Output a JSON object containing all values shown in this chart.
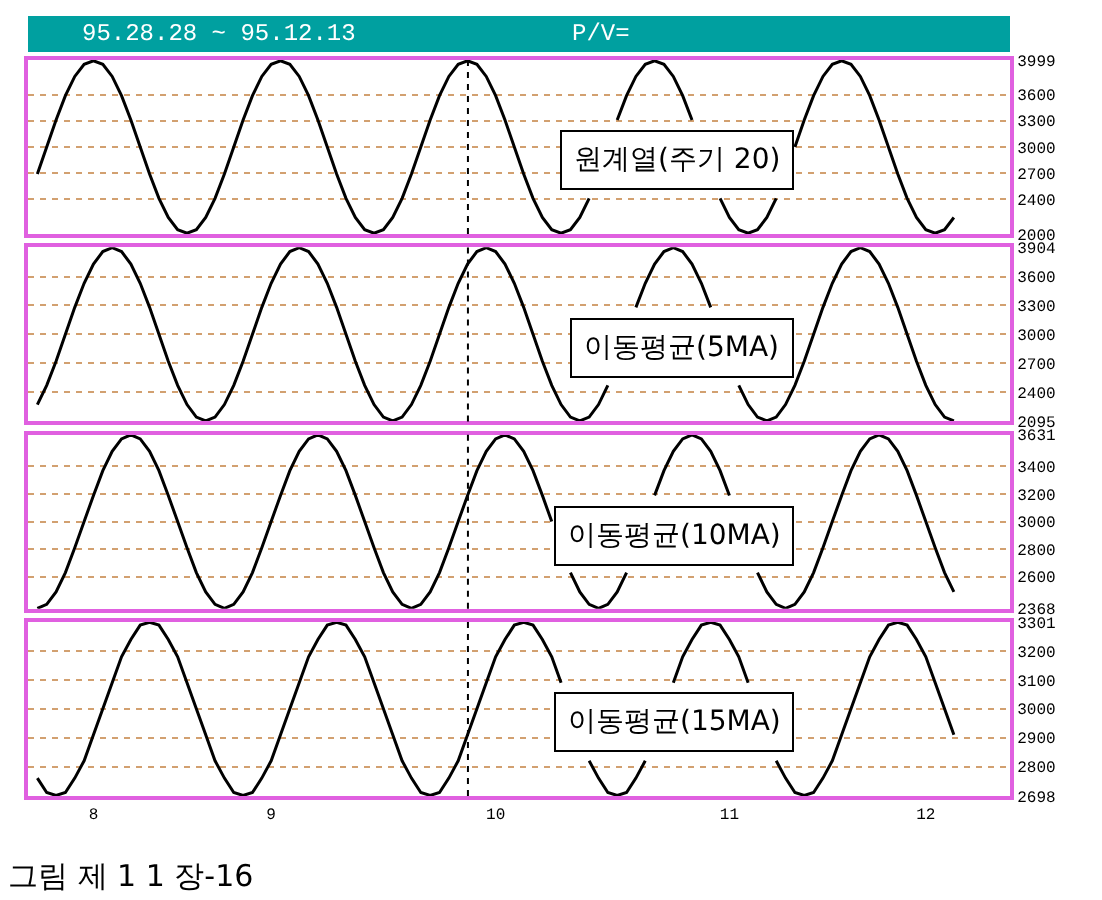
{
  "chart_data": [
    {
      "type": "line",
      "title": "95.28.28 ~ 95.12.13",
      "subtitle": "P/V=",
      "annotations": [
        "원계열(주기 20)"
      ],
      "line_style": "solid",
      "marker": "none",
      "grid": "y",
      "tick_labels": "y",
      "categories": [
        null,
        null,
        null,
        null,
        null,
        null,
        "8",
        null,
        null,
        null,
        null,
        null,
        null,
        null,
        null,
        null,
        null,
        null,
        null,
        null,
        null,
        null,
        null,
        null,
        null,
        "9",
        null,
        null,
        null,
        null,
        null,
        null,
        null,
        null,
        null,
        null,
        null,
        null,
        null,
        null,
        null,
        null,
        null,
        null,
        null,
        null,
        null,
        null,
        null,
        "10",
        null,
        null,
        null,
        null,
        null,
        null,
        null,
        null,
        null,
        null,
        null,
        null,
        null,
        null,
        null,
        null,
        null,
        null,
        null,
        null,
        null,
        null,
        null,
        null,
        "11",
        null,
        null,
        null,
        null,
        null,
        null,
        null,
        null,
        null,
        null,
        null,
        null,
        null,
        null,
        null,
        null,
        null,
        null,
        null,
        null,
        "12",
        null,
        null,
        null
      ],
      "ylim": [
        2000,
        3999
      ],
      "yticks": [
        2000,
        2400,
        2700,
        3000,
        3300,
        3600,
        3999
      ],
      "series": [
        {
          "color": "#000000",
          "values": [
            2690,
            3000,
            3310,
            3590,
            3810,
            3950,
            3990,
            3950,
            3810,
            3590,
            3310,
            3000,
            2690,
            2410,
            2190,
            2050,
            2010,
            2050,
            2190,
            2410,
            2690,
            3000,
            3310,
            3590,
            3810,
            3950,
            3990,
            3950,
            3810,
            3590,
            3310,
            3000,
            2690,
            2410,
            2190,
            2050,
            2010,
            2050,
            2190,
            2410,
            2690,
            3000,
            3310,
            3590,
            3810,
            3950,
            3990,
            3950,
            3810,
            3590,
            3310,
            3000,
            2690,
            2410,
            2190,
            2050,
            2010,
            2050,
            2190,
            2410,
            null,
            null,
            3310,
            3590,
            3810,
            3950,
            3990,
            3950,
            3810,
            3590,
            3310,
            null,
            null,
            2410,
            2190,
            2050,
            2010,
            2050,
            2190,
            2410,
            null,
            3000,
            3310,
            3590,
            3810,
            3950,
            3990,
            3950,
            3810,
            3590,
            3310,
            3000,
            2690,
            2410,
            2190,
            2050,
            2010,
            2050,
            2190
          ]
        }
      ]
    },
    {
      "type": "line",
      "annotations": [
        "이동평균(5MA)"
      ],
      "line_style": "solid",
      "marker": "none",
      "grid": "y",
      "tick_labels": "y",
      "categories": [
        null,
        null,
        null,
        null,
        null,
        null,
        "8",
        null,
        null,
        null,
        null,
        null,
        null,
        null,
        null,
        null,
        null,
        null,
        null,
        null,
        null,
        null,
        null,
        null,
        null,
        "9",
        null,
        null,
        null,
        null,
        null,
        null,
        null,
        null,
        null,
        null,
        null,
        null,
        null,
        null,
        null,
        null,
        null,
        null,
        null,
        null,
        null,
        null,
        null,
        "10",
        null,
        null,
        null,
        null,
        null,
        null,
        null,
        null,
        null,
        null,
        null,
        null,
        null,
        null,
        null,
        null,
        null,
        null,
        null,
        null,
        null,
        null,
        null,
        null,
        "11",
        null,
        null,
        null,
        null,
        null,
        null,
        null,
        null,
        null,
        null,
        null,
        null,
        null,
        null,
        null,
        null,
        null,
        null,
        null,
        null,
        "12",
        null,
        null,
        null
      ],
      "ylim": [
        2095,
        3904
      ],
      "yticks": [
        2095,
        2400,
        2700,
        3000,
        3300,
        3600,
        3904
      ],
      "series": [
        {
          "color": "#000000",
          "values": [
            2270,
            2470,
            2720,
            3000,
            3280,
            3530,
            3730,
            3860,
            3900,
            3860,
            3730,
            3530,
            3280,
            3000,
            2720,
            2470,
            2270,
            2140,
            2100,
            2140,
            2270,
            2470,
            2720,
            3000,
            3280,
            3530,
            3730,
            3860,
            3900,
            3860,
            3730,
            3530,
            3280,
            3000,
            2720,
            2470,
            2270,
            2140,
            2100,
            2140,
            2270,
            2470,
            2720,
            3000,
            3280,
            3530,
            3730,
            3860,
            3900,
            3860,
            3730,
            3530,
            3280,
            3000,
            2720,
            2470,
            2270,
            2140,
            2100,
            2140,
            2270,
            2470,
            null,
            null,
            3280,
            3530,
            3730,
            3860,
            3900,
            3860,
            3730,
            3530,
            3280,
            null,
            null,
            2470,
            2270,
            2140,
            2100,
            2140,
            2270,
            2470,
            2720,
            3000,
            3280,
            3530,
            3730,
            3860,
            3900,
            3860,
            3730,
            3530,
            3280,
            3000,
            2720,
            2470,
            2270,
            2140,
            2100
          ]
        }
      ]
    },
    {
      "type": "line",
      "annotations": [
        "이동평균(10MA)"
      ],
      "line_style": "solid",
      "marker": "none",
      "grid": "y",
      "tick_labels": "y",
      "categories": [
        null,
        null,
        null,
        null,
        null,
        null,
        "8",
        null,
        null,
        null,
        null,
        null,
        null,
        null,
        null,
        null,
        null,
        null,
        null,
        null,
        null,
        null,
        null,
        null,
        null,
        "9",
        null,
        null,
        null,
        null,
        null,
        null,
        null,
        null,
        null,
        null,
        null,
        null,
        null,
        null,
        null,
        null,
        null,
        null,
        null,
        null,
        null,
        null,
        null,
        "10",
        null,
        null,
        null,
        null,
        null,
        null,
        null,
        null,
        null,
        null,
        null,
        null,
        null,
        null,
        null,
        null,
        null,
        null,
        null,
        null,
        null,
        null,
        null,
        null,
        "11",
        null,
        null,
        null,
        null,
        null,
        null,
        null,
        null,
        null,
        null,
        null,
        null,
        null,
        null,
        null,
        null,
        null,
        null,
        null,
        null,
        "12",
        null,
        null,
        null
      ],
      "ylim": [
        2368,
        3631
      ],
      "yticks": [
        2368,
        2600,
        2800,
        3000,
        3200,
        3400,
        3631
      ],
      "series": [
        {
          "color": "#000000",
          "values": [
            2370,
            2400,
            2490,
            2630,
            2810,
            3000,
            3190,
            3370,
            3510,
            3600,
            3630,
            3600,
            3510,
            3370,
            3190,
            3000,
            2810,
            2630,
            2490,
            2400,
            2370,
            2400,
            2490,
            2630,
            2810,
            3000,
            3190,
            3370,
            3510,
            3600,
            3630,
            3600,
            3510,
            3370,
            3190,
            3000,
            2810,
            2630,
            2490,
            2400,
            2370,
            2400,
            2490,
            2630,
            2810,
            3000,
            3190,
            3370,
            3510,
            3600,
            3630,
            3600,
            3510,
            3370,
            3190,
            3000,
            null,
            2630,
            2490,
            2400,
            2370,
            2400,
            2490,
            2630,
            null,
            null,
            3190,
            3370,
            3510,
            3600,
            3630,
            3600,
            3510,
            3370,
            3190,
            null,
            null,
            2630,
            2490,
            2400,
            2370,
            2400,
            2490,
            2630,
            2810,
            3000,
            3190,
            3370,
            3510,
            3600,
            3630,
            3600,
            3510,
            3370,
            3190,
            3000,
            2810,
            2630,
            2490
          ]
        }
      ]
    },
    {
      "type": "line",
      "annotations": [
        "이동평균(15MA)",
        "그림 제 1 1 장-16"
      ],
      "line_style": "solid",
      "marker": "none",
      "grid": "y",
      "categories": [
        null,
        null,
        null,
        null,
        null,
        null,
        "8",
        null,
        null,
        null,
        null,
        null,
        null,
        null,
        null,
        null,
        null,
        null,
        null,
        null,
        null,
        null,
        null,
        null,
        null,
        "9",
        null,
        null,
        null,
        null,
        null,
        null,
        null,
        null,
        null,
        null,
        null,
        null,
        null,
        null,
        null,
        null,
        null,
        null,
        null,
        null,
        null,
        null,
        null,
        "10",
        null,
        null,
        null,
        null,
        null,
        null,
        null,
        null,
        null,
        null,
        null,
        null,
        null,
        null,
        null,
        null,
        null,
        null,
        null,
        null,
        null,
        null,
        null,
        null,
        "11",
        null,
        null,
        null,
        null,
        null,
        null,
        null,
        null,
        null,
        null,
        null,
        null,
        null,
        null,
        null,
        null,
        null,
        null,
        null,
        null,
        "12",
        null,
        null,
        null
      ],
      "ylim": [
        2698,
        3301
      ],
      "yticks": [
        2698,
        2800,
        2900,
        3000,
        3100,
        3200,
        3301
      ],
      "series": [
        {
          "color": "#000000",
          "values": [
            2760,
            2710,
            2700,
            2710,
            2760,
            2820,
            2910,
            3000,
            3090,
            3180,
            3240,
            3290,
            3300,
            3290,
            3240,
            3180,
            3090,
            3000,
            2910,
            2820,
            2760,
            2710,
            2700,
            2710,
            2760,
            2820,
            2910,
            3000,
            3090,
            3180,
            3240,
            3290,
            3300,
            3290,
            3240,
            3180,
            3090,
            3000,
            2910,
            2820,
            2760,
            2710,
            2700,
            2710,
            2760,
            2820,
            2910,
            3000,
            3090,
            3180,
            3240,
            3290,
            3300,
            3290,
            3240,
            3180,
            3090,
            null,
            null,
            2820,
            2760,
            2710,
            2700,
            2710,
            2760,
            2820,
            null,
            null,
            3090,
            3180,
            3240,
            3290,
            3300,
            3290,
            3240,
            3180,
            3090,
            null,
            null,
            2820,
            2760,
            2710,
            2700,
            2710,
            2760,
            2820,
            2910,
            3000,
            3090,
            3180,
            3240,
            3290,
            3300,
            3290,
            3240,
            3180,
            3090,
            3000,
            2910
          ]
        }
      ]
    }
  ]
}
